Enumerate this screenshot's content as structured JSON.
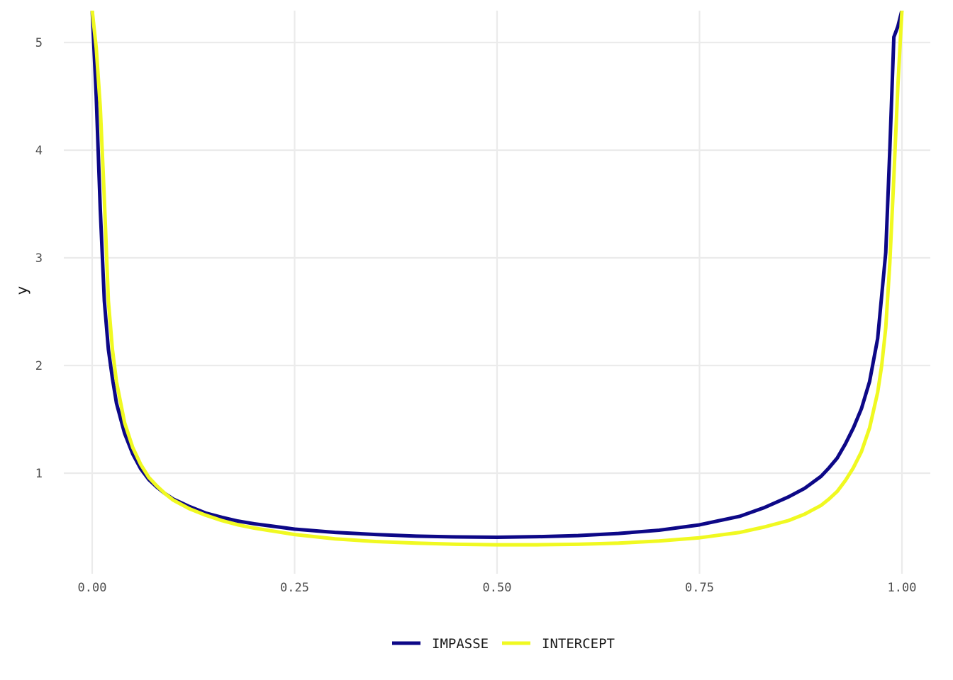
{
  "chart_data": {
    "type": "line",
    "title": "",
    "xlabel": "",
    "ylabel": "y",
    "xlim": [
      0,
      1
    ],
    "ylim": [
      0.1,
      5.3
    ],
    "x_ticks": [
      0.0,
      0.25,
      0.5,
      0.75,
      1.0
    ],
    "x_tick_labels": [
      "0.00",
      "0.25",
      "0.50",
      "0.75",
      "1.00"
    ],
    "y_ticks": [
      1,
      2,
      3,
      4,
      5
    ],
    "y_tick_labels": [
      "1",
      "2",
      "3",
      "4",
      "5"
    ],
    "grid": true,
    "legend_position": "bottom",
    "series": [
      {
        "name": "IMPASSE",
        "color": "#0d0887",
        "x": [
          0.0,
          0.005,
          0.01,
          0.015,
          0.02,
          0.025,
          0.03,
          0.04,
          0.05,
          0.06,
          0.07,
          0.08,
          0.09,
          0.1,
          0.12,
          0.14,
          0.16,
          0.18,
          0.2,
          0.25,
          0.3,
          0.35,
          0.4,
          0.45,
          0.5,
          0.55,
          0.6,
          0.65,
          0.7,
          0.75,
          0.8,
          0.83,
          0.86,
          0.88,
          0.9,
          0.91,
          0.92,
          0.93,
          0.94,
          0.95,
          0.96,
          0.97,
          0.98,
          0.985,
          0.99,
          0.995,
          1.0
        ],
        "y": [
          5.3,
          4.5,
          3.45,
          2.6,
          2.15,
          1.88,
          1.65,
          1.37,
          1.18,
          1.04,
          0.94,
          0.87,
          0.81,
          0.76,
          0.69,
          0.63,
          0.59,
          0.555,
          0.53,
          0.48,
          0.45,
          0.43,
          0.415,
          0.408,
          0.405,
          0.41,
          0.42,
          0.44,
          0.47,
          0.52,
          0.6,
          0.68,
          0.78,
          0.86,
          0.97,
          1.05,
          1.14,
          1.27,
          1.42,
          1.6,
          1.85,
          2.25,
          3.05,
          4.0,
          5.05,
          5.15,
          5.3
        ]
      },
      {
        "name": "INTERCEPT",
        "color": "#f0f921",
        "x": [
          0.0,
          0.005,
          0.01,
          0.015,
          0.02,
          0.025,
          0.03,
          0.04,
          0.05,
          0.06,
          0.07,
          0.08,
          0.09,
          0.1,
          0.12,
          0.14,
          0.16,
          0.18,
          0.2,
          0.25,
          0.3,
          0.35,
          0.4,
          0.45,
          0.5,
          0.55,
          0.6,
          0.65,
          0.7,
          0.75,
          0.8,
          0.83,
          0.86,
          0.88,
          0.9,
          0.91,
          0.92,
          0.93,
          0.94,
          0.95,
          0.96,
          0.97,
          0.975,
          0.98,
          0.985,
          0.99,
          0.995,
          1.0
        ],
        "y": [
          5.3,
          4.95,
          4.4,
          3.55,
          2.6,
          2.15,
          1.85,
          1.47,
          1.24,
          1.08,
          0.96,
          0.88,
          0.81,
          0.75,
          0.67,
          0.61,
          0.56,
          0.52,
          0.49,
          0.43,
          0.39,
          0.365,
          0.35,
          0.34,
          0.335,
          0.335,
          0.34,
          0.35,
          0.37,
          0.4,
          0.45,
          0.5,
          0.56,
          0.62,
          0.7,
          0.76,
          0.83,
          0.93,
          1.05,
          1.2,
          1.42,
          1.75,
          2.0,
          2.35,
          2.95,
          3.75,
          4.6,
          5.3
        ]
      }
    ]
  }
}
